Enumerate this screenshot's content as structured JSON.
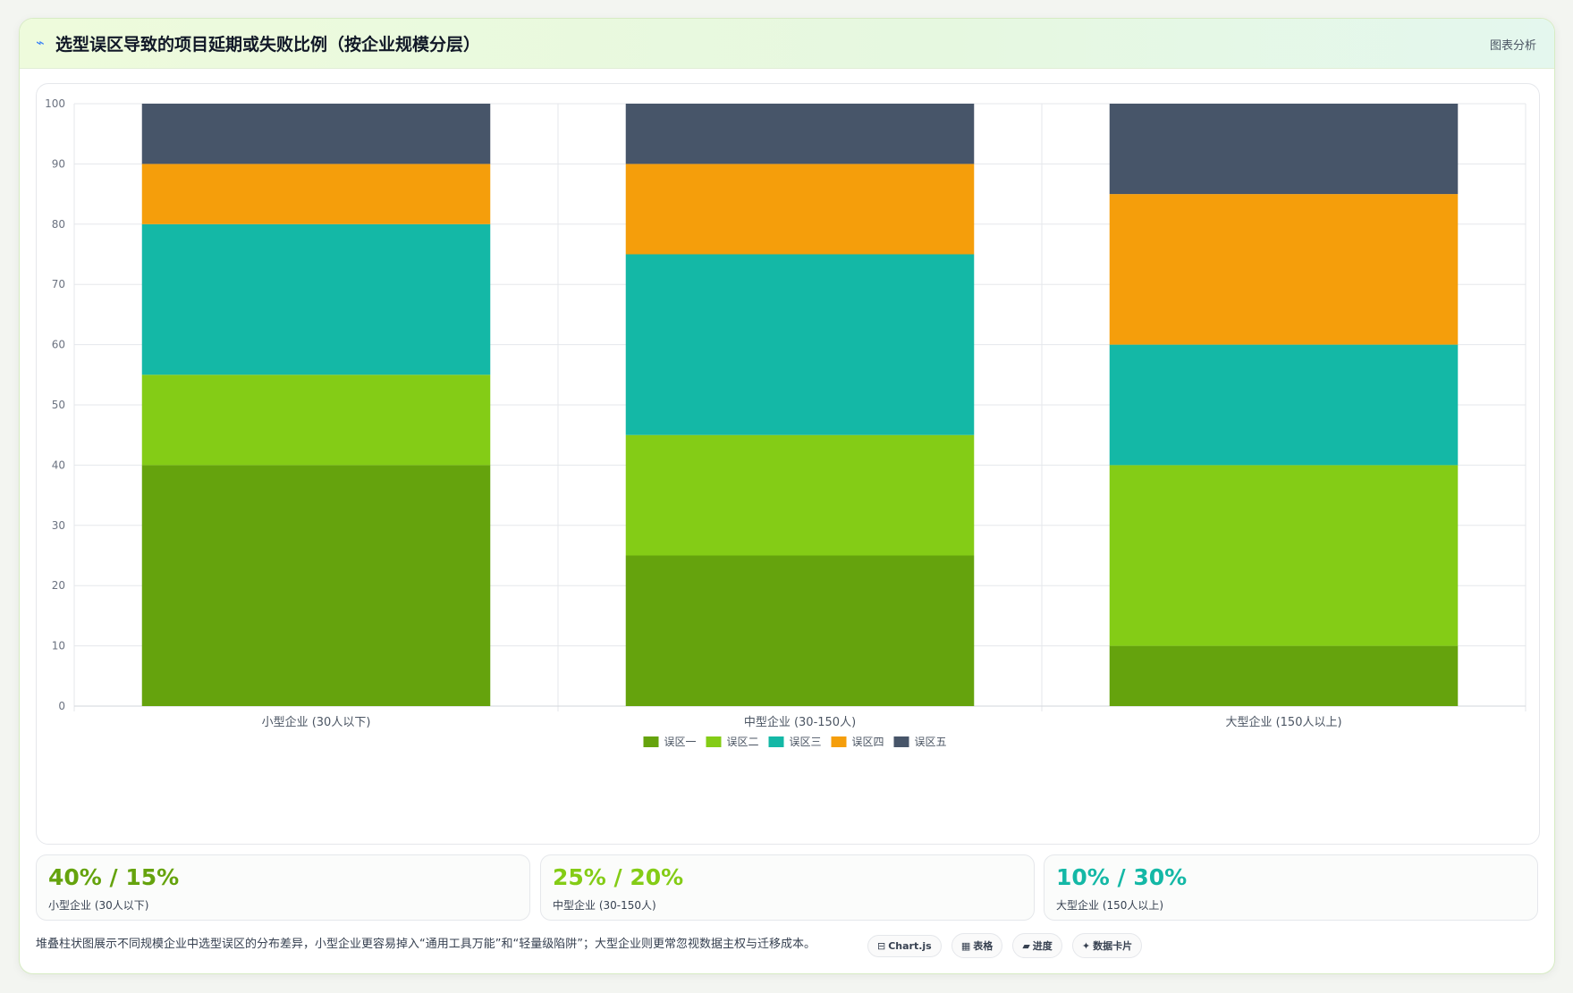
{
  "header": {
    "icon": "line-chart-icon",
    "title": "选型误区导致的项目延期或失败比例（按企业规模分层）",
    "tag": "图表分析"
  },
  "colors": {
    "series": [
      "#65a30d",
      "#84cc16",
      "#14b8a6",
      "#f59e0b",
      "#475569"
    ],
    "stat_values": [
      "#65a30d",
      "#84cc16",
      "#14b8a6"
    ]
  },
  "chart_data": {
    "type": "bar",
    "stacked": true,
    "categories": [
      "小型企业 (30人以下)",
      "中型企业 (30-150人)",
      "大型企业 (150人以上)"
    ],
    "series": [
      {
        "name": "误区一",
        "values": [
          40,
          25,
          10
        ]
      },
      {
        "name": "误区二",
        "values": [
          15,
          20,
          30
        ]
      },
      {
        "name": "误区三",
        "values": [
          25,
          30,
          20
        ]
      },
      {
        "name": "误区四",
        "values": [
          10,
          15,
          25
        ]
      },
      {
        "name": "误区五",
        "values": [
          10,
          10,
          15
        ]
      }
    ],
    "ylim": [
      0,
      100
    ],
    "yticks": [
      0,
      10,
      20,
      30,
      40,
      50,
      60,
      70,
      80,
      90,
      100
    ],
    "grid": true,
    "legend": "bottom-center"
  },
  "stats": [
    {
      "value": "40% / 15%",
      "label": "小型企业 (30人以下)"
    },
    {
      "value": "25% / 20%",
      "label": "中型企业 (30-150人)"
    },
    {
      "value": "10% / 30%",
      "label": "大型企业 (150人以上)"
    }
  ],
  "footnote": "堆叠柱状图展示不同规模企业中选型误区的分布差异，小型企业更容易掉入“通用工具万能”和“轻量级陷阱”；大型企业则更常忽视数据主权与迁移成本。",
  "pills": [
    {
      "icon": "chart-icon",
      "glyph": "⊟",
      "label": "Chart.js"
    },
    {
      "icon": "table-icon",
      "glyph": "▦",
      "label": "表格"
    },
    {
      "icon": "progress-icon",
      "glyph": "▰",
      "label": "进度"
    },
    {
      "icon": "card-icon",
      "glyph": "✦",
      "label": "数据卡片"
    }
  ]
}
